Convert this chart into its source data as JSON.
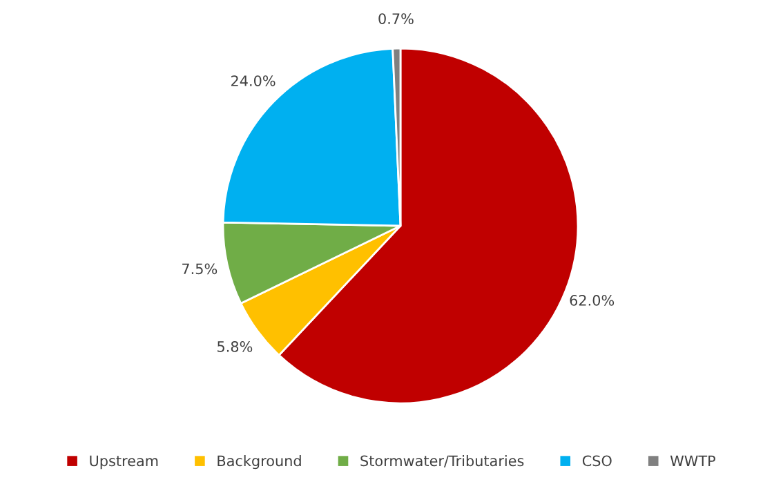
{
  "chart_data": {
    "type": "pie",
    "categories": [
      "Upstream",
      "Background",
      "Stormwater/Tributaries",
      "CSO",
      "WWTP"
    ],
    "values": [
      62.0,
      5.8,
      7.5,
      24.0,
      0.7
    ],
    "colors": [
      "#c00000",
      "#ffc000",
      "#70ad47",
      "#00b0f0",
      "#808080"
    ],
    "value_labels": [
      "62.0%",
      "5.8%",
      "7.5%",
      "24.0%",
      "0.7%"
    ],
    "legend": "bottom"
  }
}
